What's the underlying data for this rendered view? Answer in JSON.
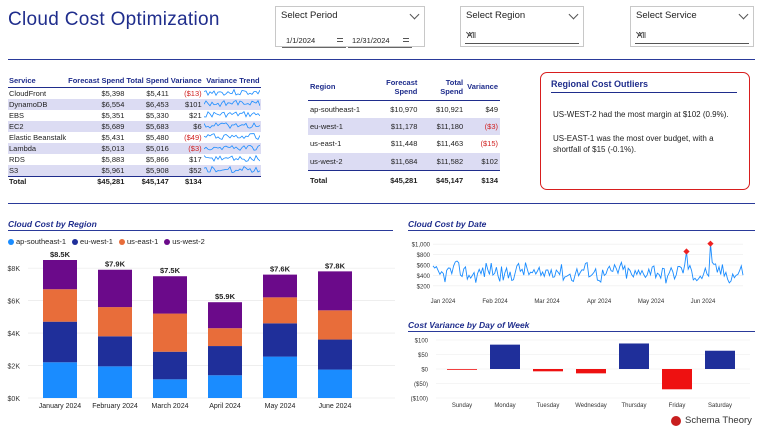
{
  "page_title": "Cloud Cost Optimization",
  "slicers": {
    "period": {
      "label": "Select Period",
      "start": "1/1/2024",
      "end": "12/31/2024"
    },
    "region": {
      "label": "Select Region",
      "value": "All"
    },
    "service": {
      "label": "Select Service",
      "value": "All"
    }
  },
  "service_table": {
    "headers": [
      "Service",
      "Forecast Spend",
      "Total Spend",
      "Variance",
      "Variance Trend"
    ],
    "rows": [
      [
        "CloudFront",
        "$5,398",
        "$5,411",
        "($13)"
      ],
      [
        "DynamoDB",
        "$6,554",
        "$6,453",
        "$101"
      ],
      [
        "EBS",
        "$5,351",
        "$5,330",
        "$21"
      ],
      [
        "EC2",
        "$5,689",
        "$5,683",
        "$6"
      ],
      [
        "Elastic Beanstalk",
        "$5,431",
        "$5,480",
        "($49)"
      ],
      [
        "Lambda",
        "$5,013",
        "$5,016",
        "($3)"
      ],
      [
        "RDS",
        "$5,883",
        "$5,866",
        "$17"
      ],
      [
        "S3",
        "$5,961",
        "$5,908",
        "$52"
      ]
    ],
    "total": [
      "Total",
      "$45,281",
      "$45,147",
      "$134"
    ]
  },
  "region_table": {
    "headers": [
      "Region",
      "Forecast Spend",
      "Total Spend",
      "Variance"
    ],
    "rows": [
      [
        "ap-southeast-1",
        "$10,970",
        "$10,921",
        "$49"
      ],
      [
        "eu-west-1",
        "$11,178",
        "$11,180",
        "($3)"
      ],
      [
        "us-east-1",
        "$11,448",
        "$11,463",
        "($15)"
      ],
      [
        "us-west-2",
        "$11,684",
        "$11,582",
        "$102"
      ]
    ],
    "total": [
      "Total",
      "$45,281",
      "$45,147",
      "$134"
    ]
  },
  "outliers": {
    "title": "Regional Cost Outliers",
    "line1": "US-WEST-2 had the most margin at $102 (0.9%).",
    "line2": "US-EAST-1 was the most over budget, with a shortfall of $15 (-0.1%)."
  },
  "colors": {
    "ap-southeast-1": "#1a8cff",
    "eu-west-1": "#1f2f9a",
    "us-east-1": "#e86d3a",
    "us-west-2": "#6b0a8a",
    "positive": "#1f2f9a",
    "negative": "#ee1111"
  },
  "chart_data": [
    {
      "type": "bar",
      "stacked": true,
      "title": "Cloud Cost by Region",
      "categories": [
        "January 2024",
        "February 2024",
        "March 2024",
        "April 2024",
        "May 2024",
        "June 2024"
      ],
      "series": [
        {
          "name": "ap-southeast-1",
          "values": [
            2200,
            1950,
            1150,
            1400,
            2550,
            1750
          ]
        },
        {
          "name": "eu-west-1",
          "values": [
            2500,
            1850,
            1700,
            1800,
            2050,
            1850
          ]
        },
        {
          "name": "us-east-1",
          "values": [
            2000,
            1800,
            2350,
            1100,
            1600,
            1800
          ]
        },
        {
          "name": "us-west-2",
          "values": [
            1800,
            2300,
            2300,
            1600,
            1400,
            2400
          ]
        }
      ],
      "totals_labels": [
        "$8.5K",
        "$7.9K",
        "$7.5K",
        "$5.9K",
        "$7.6K",
        "$7.8K"
      ],
      "ylim": [
        0,
        8500
      ],
      "yticks": [
        0,
        2000,
        4000,
        6000,
        8000
      ],
      "ytick_labels": [
        "$0K",
        "$2K",
        "$4K",
        "$6K",
        "$8K"
      ],
      "legend": "top-left"
    },
    {
      "type": "line",
      "title": "Cloud Cost by Date",
      "x_range": [
        "2024-01-01",
        "2024-06-30"
      ],
      "xtick_labels": [
        "Jan 2024",
        "Feb 2024",
        "Mar 2024",
        "Apr 2024",
        "May 2024",
        "Jun 2024"
      ],
      "ylim": [
        100,
        1100
      ],
      "yticks": [
        200,
        400,
        600,
        800,
        1000
      ],
      "ytick_labels": [
        "$200",
        "$400",
        "$600",
        "$800",
        "$1,000"
      ],
      "anomalies": [
        {
          "x": "2024-05-28",
          "y": 860
        },
        {
          "x": "2024-06-11",
          "y": 1010
        }
      ]
    },
    {
      "type": "bar",
      "title": "Cost Variance by Day of Week",
      "categories": [
        "Sunday",
        "Monday",
        "Tuesday",
        "Wednesday",
        "Thursday",
        "Friday",
        "Saturday"
      ],
      "values": [
        -2,
        84,
        -8,
        -15,
        88,
        -70,
        63
      ],
      "ylim": [
        -100,
        100
      ],
      "yticks": [
        -100,
        -50,
        0,
        50,
        100
      ],
      "ytick_labels": [
        "($100)",
        "($50)",
        "$0",
        "$50",
        "$100"
      ]
    }
  ],
  "brand": "Schema Theory"
}
